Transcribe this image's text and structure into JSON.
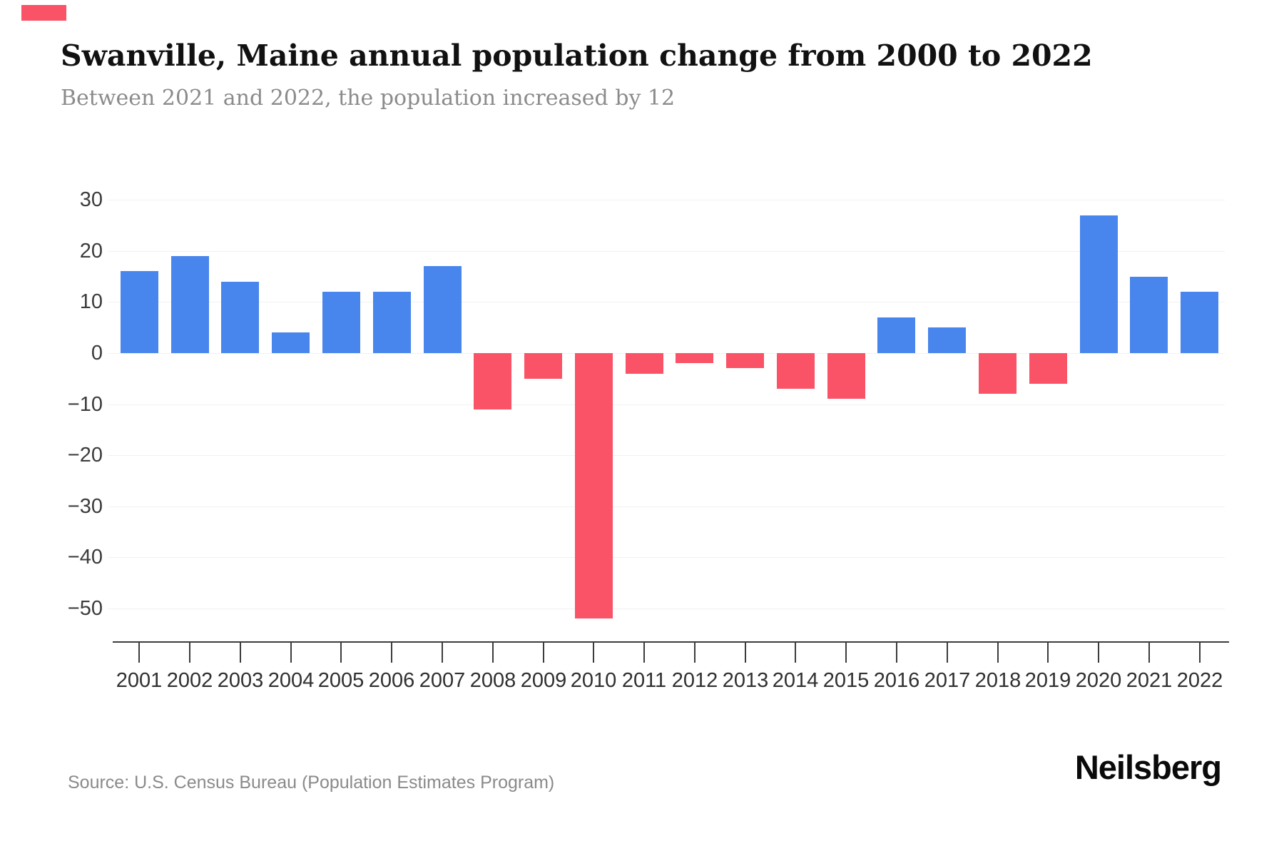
{
  "page": {
    "title": "Swanville, Maine annual population change from 2000 to 2022",
    "subtitle": "Between 2021 and 2022, the population increased by 12",
    "source": "Source: U.S. Census Bureau (Population Estimates Program)",
    "brand": "Neilsberg"
  },
  "colors": {
    "positive_bar": "#4885ec",
    "negative_bar": "#fa5266",
    "accent_swatch": "#fa5266",
    "gridline": "#f1f1f1",
    "axis": "#3c3c3c",
    "tick_label": "#3c3c3c",
    "year_label": "#303030",
    "title_text": "#111111",
    "subtitle_text": "#8b8b8b",
    "source_text": "#8a8a8a"
  },
  "chart_data": {
    "type": "bar",
    "title": "Swanville, Maine annual population change from 2000 to 2022",
    "subtitle": "Between 2021 and 2022, the population increased by 12",
    "xlabel": "",
    "ylabel": "",
    "categories": [
      "2001",
      "2002",
      "2003",
      "2004",
      "2005",
      "2006",
      "2007",
      "2008",
      "2009",
      "2010",
      "2011",
      "2012",
      "2013",
      "2014",
      "2015",
      "2016",
      "2017",
      "2018",
      "2019",
      "2020",
      "2021",
      "2022"
    ],
    "values": [
      16,
      19,
      14,
      4,
      12,
      12,
      17,
      -11,
      -5,
      -52,
      -4,
      -2,
      -3,
      -7,
      -9,
      7,
      5,
      -8,
      -6,
      27,
      15,
      12
    ],
    "ytick_values": [
      30,
      20,
      10,
      0,
      -10,
      -20,
      -30,
      -40,
      -50
    ],
    "ytick_labels": [
      "30",
      "20",
      "10",
      "0",
      "−10",
      "−20",
      "−30",
      "−40",
      "−50"
    ],
    "ylim": [
      -57,
      33
    ],
    "grid": true,
    "legend": "none",
    "bar_color_positive": "#4885ec",
    "bar_color_negative": "#fa5266"
  }
}
